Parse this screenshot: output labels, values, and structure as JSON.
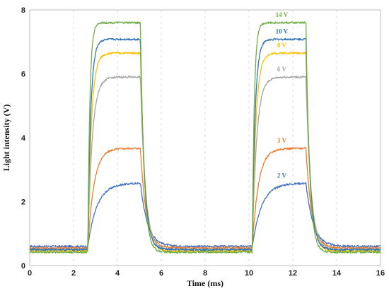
{
  "chart_data": {
    "type": "line",
    "xlabel": "Time (ms)",
    "ylabel": "Light intensity (V)",
    "xlim": [
      0,
      16
    ],
    "ylim": [
      0,
      8
    ],
    "xticks": [
      0,
      2,
      4,
      6,
      8,
      10,
      12,
      14,
      16
    ],
    "yticks": [
      0,
      2,
      4,
      6,
      8
    ],
    "grid": "vertical dashed",
    "pulses": [
      {
        "on": 2.65,
        "off": 5.05
      },
      {
        "on": 10.15,
        "off": 12.6
      }
    ],
    "series": [
      {
        "name": "2 V",
        "color": "#4472C4",
        "baseline": 0.6,
        "plateau": 2.58,
        "rise_tau": 0.42,
        "fall_tau": 0.33
      },
      {
        "name": "3 V",
        "color": "#ED7D31",
        "baseline": 0.55,
        "plateau": 3.67,
        "rise_tau": 0.28,
        "fall_tau": 0.26
      },
      {
        "name": "6 V",
        "color": "#A5A5A5",
        "baseline": 0.5,
        "plateau": 5.9,
        "rise_tau": 0.2,
        "fall_tau": 0.22
      },
      {
        "name": "8 V",
        "color": "#FFC000",
        "baseline": 0.45,
        "plateau": 6.65,
        "rise_tau": 0.16,
        "fall_tau": 0.2
      },
      {
        "name": "10 V",
        "color": "#2E75B6",
        "baseline": 0.5,
        "plateau": 7.08,
        "rise_tau": 0.13,
        "fall_tau": 0.18
      },
      {
        "name": "14 V",
        "color": "#70AD47",
        "baseline": 0.42,
        "plateau": 7.6,
        "rise_tau": 0.09,
        "fall_tau": 0.16
      }
    ]
  }
}
